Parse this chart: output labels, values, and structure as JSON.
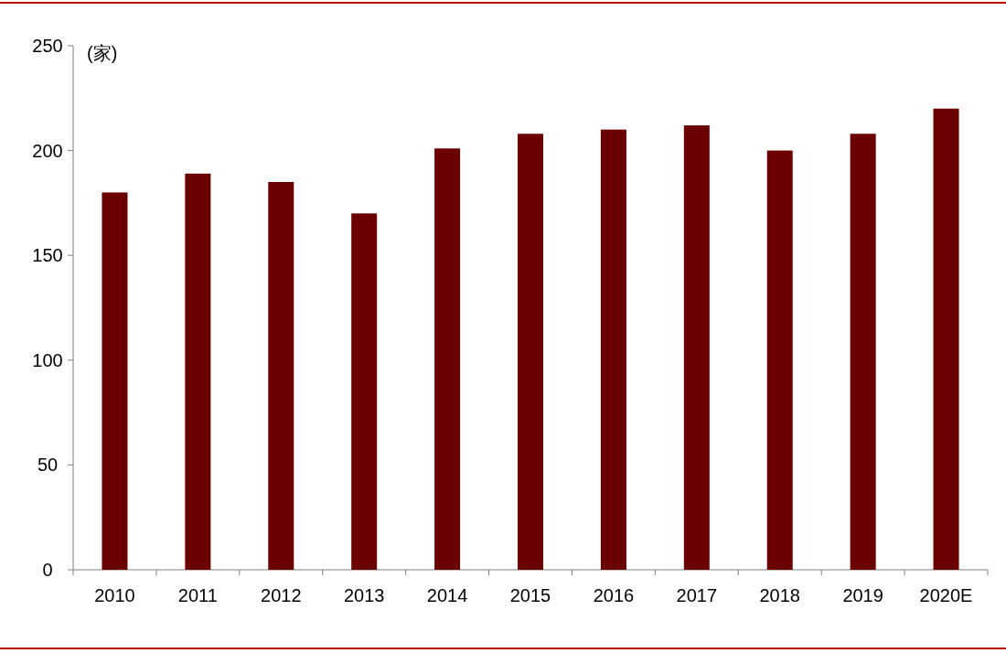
{
  "chart_data": {
    "type": "bar",
    "ylabel": "(家)",
    "categories": [
      "2010",
      "2011",
      "2012",
      "2013",
      "2014",
      "2015",
      "2016",
      "2017",
      "2018",
      "2019",
      "2020E"
    ],
    "values": [
      180,
      189,
      185,
      170,
      201,
      208,
      210,
      212,
      200,
      208,
      220
    ],
    "color": "#6b0000",
    "ylim": [
      0,
      250
    ],
    "yticks": [
      0,
      50,
      100,
      150,
      200,
      250
    ],
    "grid": false
  }
}
